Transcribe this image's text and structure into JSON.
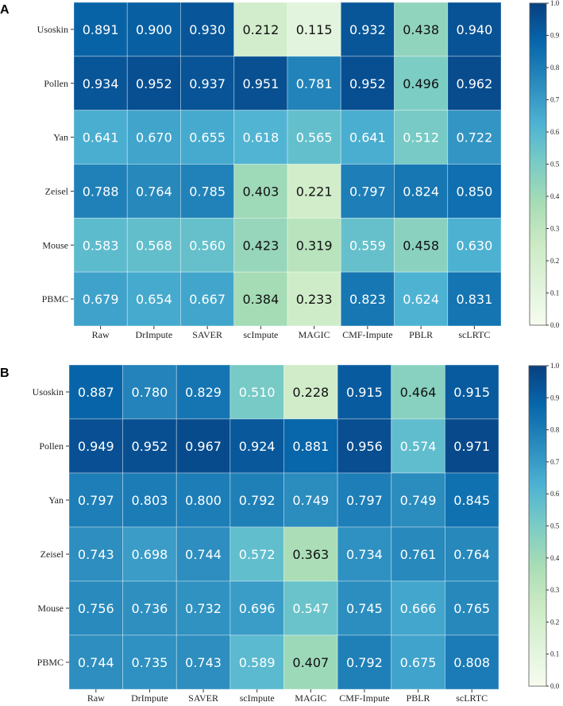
{
  "chart_data": [
    {
      "type": "heatmap",
      "panel_label": "A",
      "rows": [
        "Usoskin",
        "Pollen",
        "Yan",
        "Zeisel",
        "Mouse",
        "PBMC"
      ],
      "columns": [
        "Raw",
        "DrImpute",
        "SAVER",
        "scImpute",
        "MAGIC",
        "CMF-Impute",
        "PBLR",
        "scLRTC"
      ],
      "values": [
        [
          0.891,
          0.9,
          0.93,
          0.212,
          0.115,
          0.932,
          0.438,
          0.94
        ],
        [
          0.934,
          0.952,
          0.937,
          0.951,
          0.781,
          0.952,
          0.496,
          0.962
        ],
        [
          0.641,
          0.67,
          0.655,
          0.618,
          0.565,
          0.641,
          0.512,
          0.722
        ],
        [
          0.788,
          0.764,
          0.785,
          0.403,
          0.221,
          0.797,
          0.824,
          0.85
        ],
        [
          0.583,
          0.568,
          0.56,
          0.423,
          0.319,
          0.559,
          0.458,
          0.63
        ],
        [
          0.679,
          0.654,
          0.667,
          0.384,
          0.233,
          0.823,
          0.624,
          0.831
        ]
      ],
      "labels": [
        [
          "0.891",
          "0.900",
          "0.930",
          "0.212",
          "0.115",
          "0.932",
          "0.438",
          "0.940"
        ],
        [
          "0.934",
          "0.952",
          "0.937",
          "0.951",
          "0.781",
          "0.952",
          "0.496",
          "0.962"
        ],
        [
          "0.641",
          "0.670",
          "0.655",
          "0.618",
          "0.565",
          "0.641",
          "0.512",
          "0.722"
        ],
        [
          "0.788",
          "0.764",
          "0.785",
          "0.403",
          "0.221",
          "0.797",
          "0.824",
          "0.850"
        ],
        [
          "0.583",
          "0.568",
          "0.560",
          "0.423",
          "0.319",
          "0.559",
          "0.458",
          "0.630"
        ],
        [
          "0.679",
          "0.654",
          "0.667",
          "0.384",
          "0.233",
          "0.823",
          "0.624",
          "0.831"
        ]
      ],
      "colorbar": {
        "min": 0,
        "max": 1,
        "ticks": [
          "0.0",
          "0.1",
          "0.2",
          "0.3",
          "0.4",
          "0.5",
          "0.6",
          "0.7",
          "0.8",
          "0.9",
          "1.0"
        ]
      },
      "colormap": "GnBu"
    },
    {
      "type": "heatmap",
      "panel_label": "B",
      "rows": [
        "Usoskin",
        "Pollen",
        "Yan",
        "Zeisel",
        "Mouse",
        "PBMC"
      ],
      "columns": [
        "Raw",
        "DrImpute",
        "SAVER",
        "scImpute",
        "MAGIC",
        "CMF-Impute",
        "PBLR",
        "scLRTC"
      ],
      "values": [
        [
          0.887,
          0.78,
          0.829,
          0.51,
          0.228,
          0.915,
          0.464,
          0.915
        ],
        [
          0.949,
          0.952,
          0.967,
          0.924,
          0.881,
          0.956,
          0.574,
          0.971
        ],
        [
          0.797,
          0.803,
          0.8,
          0.792,
          0.749,
          0.797,
          0.749,
          0.845
        ],
        [
          0.743,
          0.698,
          0.744,
          0.572,
          0.363,
          0.734,
          0.761,
          0.764
        ],
        [
          0.756,
          0.736,
          0.732,
          0.696,
          0.547,
          0.745,
          0.666,
          0.765
        ],
        [
          0.744,
          0.735,
          0.743,
          0.589,
          0.407,
          0.792,
          0.675,
          0.808
        ]
      ],
      "labels": [
        [
          "0.887",
          "0.780",
          "0.829",
          "0.510",
          "0.228",
          "0.915",
          "0.464",
          "0.915"
        ],
        [
          "0.949",
          "0.952",
          "0.967",
          "0.924",
          "0.881",
          "0.956",
          "0.574",
          "0.971"
        ],
        [
          "0.797",
          "0.803",
          "0.800",
          "0.792",
          "0.749",
          "0.797",
          "0.749",
          "0.845"
        ],
        [
          "0.743",
          "0.698",
          "0.744",
          "0.572",
          "0.363",
          "0.734",
          "0.761",
          "0.764"
        ],
        [
          "0.756",
          "0.736",
          "0.732",
          "0.696",
          "0.547",
          "0.745",
          "0.666",
          "0.765"
        ],
        [
          "0.744",
          "0.735",
          "0.743",
          "0.589",
          "0.407",
          "0.792",
          "0.675",
          "0.808"
        ]
      ],
      "colorbar": {
        "min": 0,
        "max": 1,
        "ticks": [
          "0.0",
          "0.1",
          "0.2",
          "0.3",
          "0.4",
          "0.5",
          "0.6",
          "0.7",
          "0.8",
          "0.9",
          "1.0"
        ]
      },
      "colormap": "GnBu"
    }
  ],
  "colormap_stops": [
    "#f7fcf0",
    "#e0f3db",
    "#ccebc5",
    "#a8ddb5",
    "#7bccc4",
    "#4eb3d3",
    "#2b8cbe",
    "#0868ac",
    "#084081"
  ]
}
